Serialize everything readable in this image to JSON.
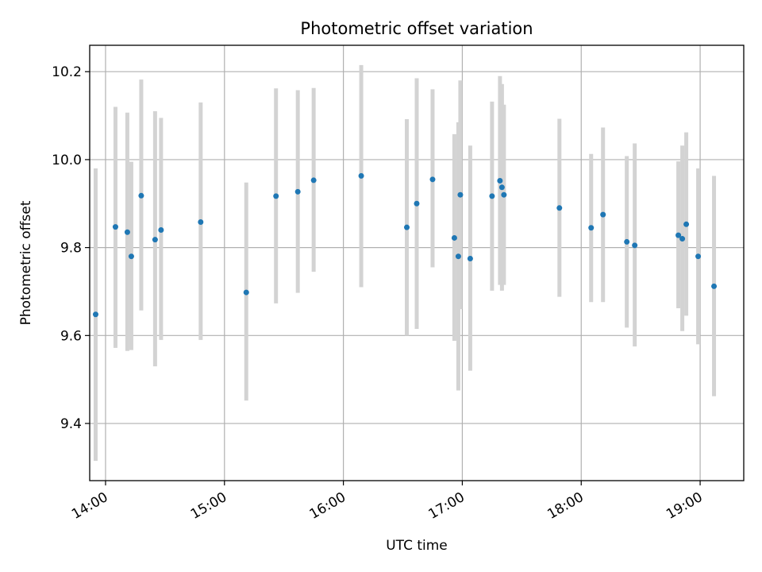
{
  "chart_data": {
    "type": "scatter",
    "title": "Photometric offset variation",
    "xlabel": "UTC time",
    "ylabel": "Photometric offset",
    "x_ticks": [
      "14:00",
      "15:00",
      "16:00",
      "17:00",
      "18:00",
      "19:00"
    ],
    "y_ticks": [
      "9.4",
      "9.6",
      "9.8",
      "10.0",
      "10.2"
    ],
    "xlim": [
      "13:52",
      "19:22"
    ],
    "ylim": [
      9.27,
      10.26
    ],
    "grid": true,
    "legend": "none",
    "marker_color": "#1f77b4",
    "errorbar_color": "#d3d3d3",
    "points": [
      {
        "x": "13:55",
        "y": 9.648,
        "yerr_low": 9.315,
        "yerr_high": 9.98
      },
      {
        "x": "14:05",
        "y": 9.847,
        "yerr_low": 9.572,
        "yerr_high": 10.12
      },
      {
        "x": "14:11",
        "y": 9.835,
        "yerr_low": 9.565,
        "yerr_high": 10.107
      },
      {
        "x": "14:13",
        "y": 9.78,
        "yerr_low": 9.567,
        "yerr_high": 9.995
      },
      {
        "x": "14:18",
        "y": 9.918,
        "yerr_low": 9.657,
        "yerr_high": 10.182
      },
      {
        "x": "14:25",
        "y": 9.818,
        "yerr_low": 9.53,
        "yerr_high": 10.11
      },
      {
        "x": "14:28",
        "y": 9.84,
        "yerr_low": 9.59,
        "yerr_high": 10.095
      },
      {
        "x": "14:48",
        "y": 9.858,
        "yerr_low": 9.59,
        "yerr_high": 10.13
      },
      {
        "x": "15:11",
        "y": 9.698,
        "yerr_low": 9.452,
        "yerr_high": 9.948
      },
      {
        "x": "15:26",
        "y": 9.917,
        "yerr_low": 9.673,
        "yerr_high": 10.162
      },
      {
        "x": "15:37",
        "y": 9.927,
        "yerr_low": 9.697,
        "yerr_high": 10.158
      },
      {
        "x": "15:45",
        "y": 9.953,
        "yerr_low": 9.745,
        "yerr_high": 10.163
      },
      {
        "x": "16:09",
        "y": 9.963,
        "yerr_low": 9.71,
        "yerr_high": 10.215
      },
      {
        "x": "16:32",
        "y": 9.846,
        "yerr_low": 9.6,
        "yerr_high": 10.092
      },
      {
        "x": "16:37",
        "y": 9.9,
        "yerr_low": 9.615,
        "yerr_high": 10.185
      },
      {
        "x": "16:45",
        "y": 9.955,
        "yerr_low": 9.755,
        "yerr_high": 10.16
      },
      {
        "x": "16:56",
        "y": 9.822,
        "yerr_low": 9.588,
        "yerr_high": 10.058
      },
      {
        "x": "16:58",
        "y": 9.78,
        "yerr_low": 9.475,
        "yerr_high": 10.085
      },
      {
        "x": "16:59",
        "y": 9.92,
        "yerr_low": 9.66,
        "yerr_high": 10.18
      },
      {
        "x": "17:04",
        "y": 9.775,
        "yerr_low": 9.52,
        "yerr_high": 10.032
      },
      {
        "x": "17:15",
        "y": 9.917,
        "yerr_low": 9.702,
        "yerr_high": 10.132
      },
      {
        "x": "17:19",
        "y": 9.952,
        "yerr_low": 9.715,
        "yerr_high": 10.19
      },
      {
        "x": "17:20",
        "y": 9.937,
        "yerr_low": 9.702,
        "yerr_high": 10.172
      },
      {
        "x": "17:21",
        "y": 9.92,
        "yerr_low": 9.715,
        "yerr_high": 10.125
      },
      {
        "x": "17:49",
        "y": 9.89,
        "yerr_low": 9.688,
        "yerr_high": 10.093
      },
      {
        "x": "18:05",
        "y": 9.845,
        "yerr_low": 9.676,
        "yerr_high": 10.013
      },
      {
        "x": "18:11",
        "y": 9.875,
        "yerr_low": 9.676,
        "yerr_high": 10.073
      },
      {
        "x": "18:23",
        "y": 9.813,
        "yerr_low": 9.618,
        "yerr_high": 10.008
      },
      {
        "x": "18:27",
        "y": 9.805,
        "yerr_low": 9.575,
        "yerr_high": 10.037
      },
      {
        "x": "18:49",
        "y": 9.828,
        "yerr_low": 9.662,
        "yerr_high": 9.996
      },
      {
        "x": "18:51",
        "y": 9.82,
        "yerr_low": 9.61,
        "yerr_high": 10.032
      },
      {
        "x": "18:53",
        "y": 9.853,
        "yerr_low": 9.645,
        "yerr_high": 10.062
      },
      {
        "x": "18:59",
        "y": 9.78,
        "yerr_low": 9.58,
        "yerr_high": 9.98
      },
      {
        "x": "19:07",
        "y": 9.712,
        "yerr_low": 9.462,
        "yerr_high": 9.963
      }
    ]
  }
}
